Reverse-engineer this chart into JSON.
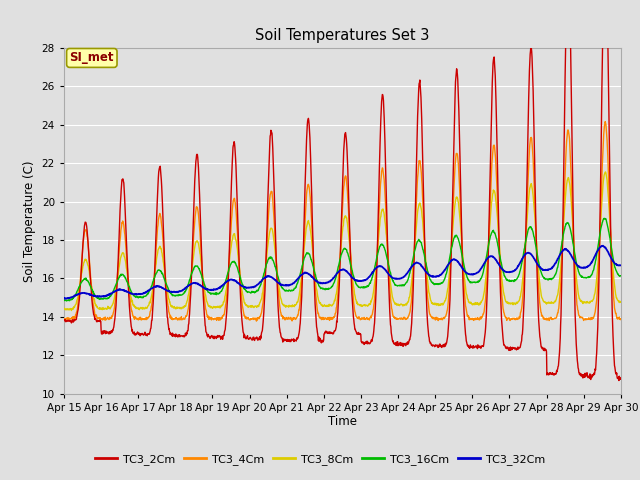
{
  "title": "Soil Temperatures Set 3",
  "xlabel": "Time",
  "ylabel": "Soil Temperature (C)",
  "xlim": [
    0,
    15
  ],
  "ylim": [
    10,
    28
  ],
  "yticks": [
    10,
    12,
    14,
    16,
    18,
    20,
    22,
    24,
    26,
    28
  ],
  "xtick_labels": [
    "Apr 15",
    "Apr 16",
    "Apr 17",
    "Apr 18",
    "Apr 19",
    "Apr 20",
    "Apr 21",
    "Apr 22",
    "Apr 23",
    "Apr 24",
    "Apr 25",
    "Apr 26",
    "Apr 27",
    "Apr 28",
    "Apr 29",
    "Apr 30"
  ],
  "background_color": "#e0e0e0",
  "plot_bg_color": "#e0e0e0",
  "grid_color": "#ffffff",
  "series_colors": [
    "#cc0000",
    "#ff8800",
    "#ddcc00",
    "#00bb00",
    "#0000cc"
  ],
  "series_labels": [
    "TC3_2Cm",
    "TC3_4Cm",
    "TC3_8Cm",
    "TC3_16Cm",
    "TC3_32Cm"
  ],
  "annotation_text": "SI_met",
  "figsize": [
    6.4,
    4.8
  ],
  "dpi": 100
}
